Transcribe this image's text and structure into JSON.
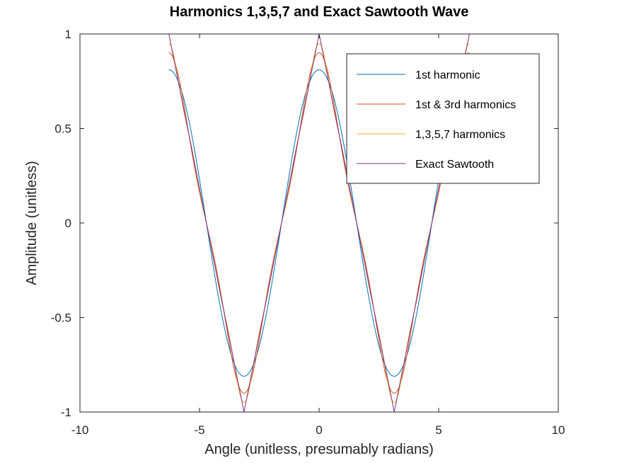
{
  "chart_data": {
    "type": "line",
    "title": "Harmonics 1,3,5,7 and Exact Sawtooth Wave",
    "xlabel": "Angle (unitless, presumably radians)",
    "ylabel": "Amplitude (unitless)",
    "xlim": [
      -10,
      10
    ],
    "ylim": [
      -1,
      1
    ],
    "x_range": [
      -6.2832,
      6.2832
    ],
    "xticks": [
      -10,
      -5,
      0,
      5,
      10
    ],
    "xtick_labels": [
      "-10",
      "-5",
      "0",
      "5",
      "10"
    ],
    "yticks": [
      -1,
      -0.5,
      0,
      0.5,
      1
    ],
    "ytick_labels": [
      "-1",
      "-0.5",
      "0",
      "0.5",
      "1"
    ],
    "grid": false,
    "legend_position": "top-right",
    "series": [
      {
        "name": "1st harmonic",
        "color": "#0072bd",
        "harmonics": [
          1
        ]
      },
      {
        "name": "1st & 3rd harmonics",
        "color": "#d95319",
        "harmonics": [
          1,
          3
        ]
      },
      {
        "name": "1,3,5,7 harmonics",
        "color": "#edb120",
        "harmonics": [
          1,
          3,
          5,
          7
        ]
      },
      {
        "name": "Exact Sawtooth",
        "color": "#7e2f8e",
        "harmonics": "exact"
      }
    ]
  }
}
